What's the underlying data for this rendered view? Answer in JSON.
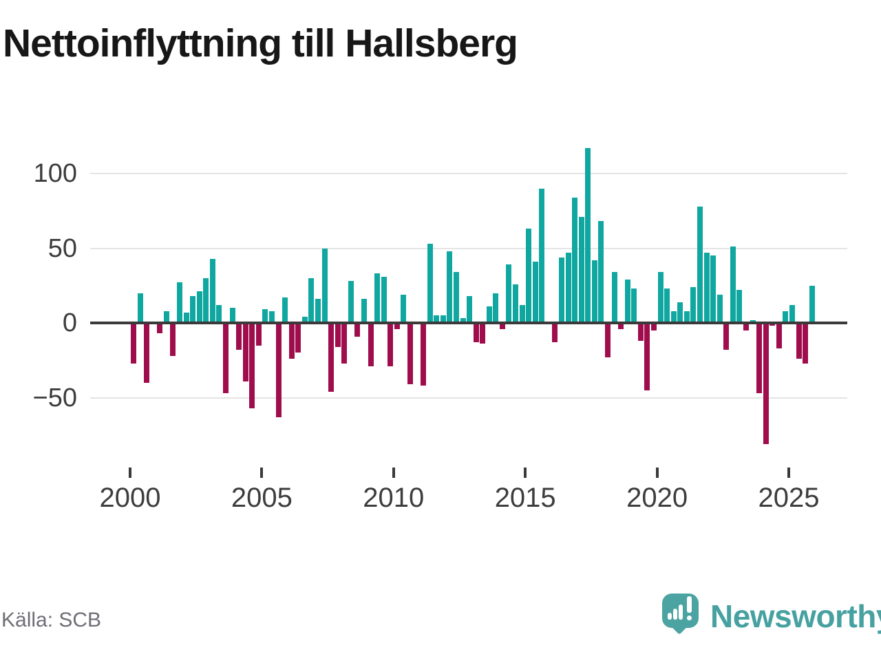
{
  "title": "Nettoinflyttning till Hallsberg",
  "source": {
    "text": "Källa: SCB"
  },
  "branding": {
    "name": "Newsworthy"
  },
  "colors": {
    "positive_bar": "#10a7a1",
    "negative_bar": "#a00d4d",
    "zero_line": "#3a3a3a",
    "gridline": "#e4e4e4",
    "axis_text": "#3d3d3d",
    "source_text": "#6e6e76",
    "logo_teal": "#4ba3a2",
    "logo_text_teal": "#46a1a0"
  },
  "chart_data": {
    "type": "bar",
    "title": "Nettoinflyttning till Hallsberg",
    "xlabel": "",
    "ylabel": "",
    "frequency": "quarterly",
    "start_year": 2000,
    "quarters_per_year": 4,
    "x_tick_labels": [
      "2000",
      "2005",
      "2010",
      "2015",
      "2020",
      "2025"
    ],
    "y_ticks": [
      100,
      50,
      0,
      -50
    ],
    "ylim": [
      -90,
      125
    ],
    "grid": "horizontal",
    "legend": "none",
    "positive_color": "#10a7a1",
    "negative_color": "#a00d4d",
    "values": [
      -27,
      20,
      -40,
      0,
      -7,
      8,
      -22,
      27,
      7,
      18,
      21,
      30,
      43,
      12,
      -47,
      10,
      -18,
      -39,
      -57,
      -15,
      9,
      8,
      -63,
      17,
      -24,
      -20,
      4,
      30,
      16,
      50,
      -46,
      -16,
      -27,
      28,
      -9,
      16,
      -29,
      33,
      31,
      -29,
      -4,
      19,
      -41,
      0,
      -42,
      53,
      5,
      5,
      48,
      34,
      3,
      18,
      -13,
      -14,
      11,
      20,
      -4,
      39,
      26,
      12,
      63,
      41,
      90,
      0,
      -13,
      44,
      47,
      84,
      71,
      117,
      42,
      68,
      -23,
      34,
      -4,
      29,
      23,
      -12,
      -45,
      -5,
      34,
      23,
      8,
      14,
      8,
      24,
      78,
      47,
      45,
      19,
      -18,
      51,
      22,
      -5,
      2,
      -47,
      -81,
      -2,
      -17,
      8,
      12,
      -24,
      -27,
      25
    ]
  }
}
